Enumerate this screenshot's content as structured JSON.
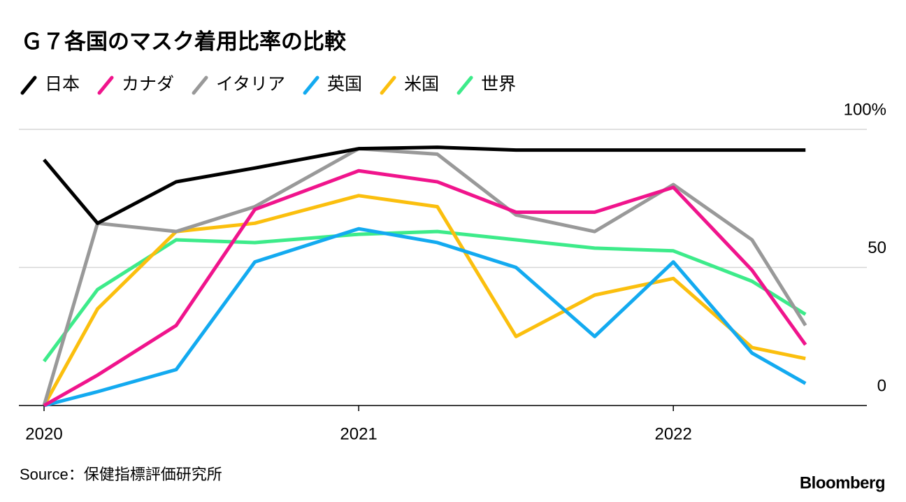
{
  "chart_data": {
    "type": "line",
    "title": "Ｇ７各国のマスク着用比率の比較",
    "x": [
      2020,
      2020.17,
      2020.42,
      2020.67,
      2021,
      2021.25,
      2021.5,
      2021.75,
      2022,
      2022.25,
      2022.42
    ],
    "xlim": [
      2019.92,
      2022.615
    ],
    "xticks": [
      2020,
      2021,
      2022
    ],
    "ylim": [
      0,
      100
    ],
    "yticks": [
      0,
      50,
      {
        "value": 100,
        "label": "100%"
      }
    ],
    "grid": true,
    "series": [
      {
        "name": "日本",
        "color": "#000000",
        "values": [
          89,
          66,
          81,
          86,
          93,
          93.5,
          92.5,
          92.5,
          92.5,
          92.5,
          92.5
        ]
      },
      {
        "name": "カナダ",
        "color": "#f0148c",
        "values": [
          0,
          11,
          29,
          71,
          85,
          81,
          70,
          70,
          79,
          49,
          22
        ]
      },
      {
        "name": "イタリア",
        "color": "#999999",
        "values": [
          0,
          66,
          63,
          72,
          93,
          91,
          69,
          63,
          80,
          60,
          29
        ]
      },
      {
        "name": "英国",
        "color": "#13aaf0",
        "values": [
          0,
          5,
          13,
          52,
          64,
          59,
          50,
          25,
          52,
          19,
          8
        ]
      },
      {
        "name": "米国",
        "color": "#fbbf0e",
        "values": [
          0,
          35,
          63,
          66,
          76,
          72,
          25,
          40,
          46,
          21,
          17
        ]
      },
      {
        "name": "世界",
        "color": "#3deb8a",
        "values": [
          16,
          42,
          60,
          59,
          62,
          63,
          60,
          57,
          56,
          45,
          33
        ]
      }
    ],
    "source": "Source：保健指標評価研究所",
    "brand": "Bloomberg"
  }
}
